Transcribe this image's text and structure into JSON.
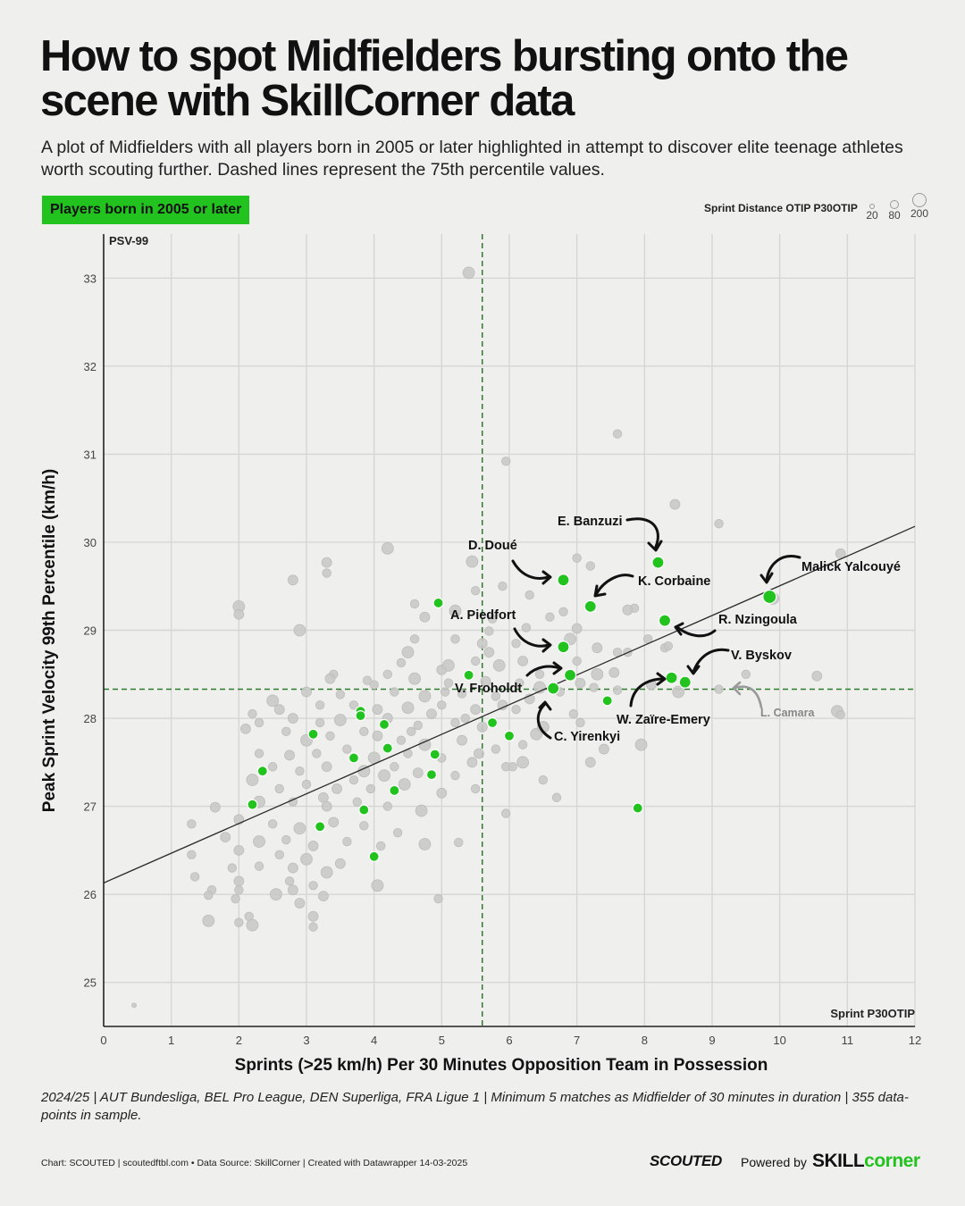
{
  "title": "How to spot Midfielders bursting onto the scene with SkillCorner data",
  "subtitle": "A plot of Midfielders with all players born in 2005 or later highlighted in attempt to discover elite teenage athletes worth scouting further. Dashed lines represent the 75th percentile values.",
  "badge": "Players born in 2005 or later",
  "size_legend": {
    "title": "Sprint Distance OTIP P30OTIP",
    "items": [
      {
        "label": "20"
      },
      {
        "label": "80"
      },
      {
        "label": "200"
      }
    ]
  },
  "footnote": "2024/25 | AUT Bundesliga, BEL Pro League, DEN Superliga, FRA Ligue 1 | Minimum 5 matches as Midfielder of 30 minutes in duration | 355 data-points in sample.",
  "credits": "Chart: SCOUTED | scoutedftbl.com • Data Source: SkillCorner | Created with Datawrapper 14-03-2025",
  "brand": {
    "scouted": "SCOUTED",
    "powered_by": "Powered by",
    "skill": "SKILL",
    "corner": "corner"
  },
  "colors": {
    "highlight": "#22c31f",
    "others": "#c9c9c7",
    "others_stroke": "#bdbdbb",
    "grid": "#d6d6d4",
    "ref": "#2f7a2f"
  },
  "chart_data": {
    "type": "scatter",
    "xlabel": "Sprints (>25 km/h) Per 30 Minutes Opposition Team in Possession",
    "ylabel": "Peak Sprint Velocity 99th Percentile (km/h)",
    "y_corner_label": "PSV-99",
    "x_corner_label": "Sprint P30OTIP",
    "xlim": [
      0,
      12
    ],
    "ylim": [
      24.5,
      33.5
    ],
    "xticks": [
      0,
      1,
      2,
      3,
      4,
      5,
      6,
      7,
      8,
      9,
      10,
      11,
      12
    ],
    "yticks": [
      25,
      26,
      27,
      28,
      29,
      30,
      31,
      32,
      33
    ],
    "x_p75": 5.6,
    "y_p75": 28.33,
    "trendline": [
      [
        0,
        26.13
      ],
      [
        12,
        30.18
      ]
    ],
    "highlighted": [
      {
        "name": "E. Banzuzi",
        "x": 8.2,
        "y": 29.77
      },
      {
        "name": "D. Doué",
        "x": 6.8,
        "y": 29.57
      },
      {
        "name": "K. Corbaine",
        "x": 7.2,
        "y": 29.27
      },
      {
        "name": "Malick Yalcouyé",
        "x": 9.85,
        "y": 29.38
      },
      {
        "name": "A. Piedfort",
        "x": 6.8,
        "y": 28.81
      },
      {
        "name": "R. Nzingoula",
        "x": 8.3,
        "y": 29.11
      },
      {
        "name": "V. Byskov",
        "x": 8.6,
        "y": 28.41
      },
      {
        "name": "W. Zaïre-Emery",
        "x": 8.4,
        "y": 28.46
      },
      {
        "name": "V. Froholdt",
        "x": 6.9,
        "y": 28.49
      },
      {
        "name": "C. Yirenkyi",
        "x": 6.65,
        "y": 28.34
      },
      {
        "name": "",
        "x": 4.95,
        "y": 29.31
      },
      {
        "name": "",
        "x": 5.4,
        "y": 28.49
      },
      {
        "name": "",
        "x": 7.45,
        "y": 28.2
      },
      {
        "name": "",
        "x": 5.75,
        "y": 27.95
      },
      {
        "name": "",
        "x": 6.0,
        "y": 27.8
      },
      {
        "name": "",
        "x": 7.9,
        "y": 26.98
      },
      {
        "name": "",
        "x": 3.1,
        "y": 27.82
      },
      {
        "name": "",
        "x": 3.8,
        "y": 28.08
      },
      {
        "name": "",
        "x": 3.8,
        "y": 28.03
      },
      {
        "name": "",
        "x": 4.15,
        "y": 27.93
      },
      {
        "name": "",
        "x": 3.7,
        "y": 27.55
      },
      {
        "name": "",
        "x": 4.2,
        "y": 27.66
      },
      {
        "name": "",
        "x": 4.9,
        "y": 27.59
      },
      {
        "name": "",
        "x": 4.85,
        "y": 27.36
      },
      {
        "name": "",
        "x": 2.35,
        "y": 27.4
      },
      {
        "name": "",
        "x": 4.3,
        "y": 27.18
      },
      {
        "name": "",
        "x": 2.2,
        "y": 27.02
      },
      {
        "name": "",
        "x": 3.85,
        "y": 26.96
      },
      {
        "name": "",
        "x": 3.2,
        "y": 26.77
      },
      {
        "name": "",
        "x": 4.0,
        "y": 26.43
      }
    ],
    "others": [
      {
        "x": 5.4,
        "y": 33.06
      },
      {
        "x": 7.6,
        "y": 31.23
      },
      {
        "x": 5.95,
        "y": 30.92
      },
      {
        "x": 8.45,
        "y": 30.43
      },
      {
        "x": 9.1,
        "y": 30.21
      },
      {
        "x": 4.2,
        "y": 29.93
      },
      {
        "x": 10.9,
        "y": 29.87
      },
      {
        "x": 7.0,
        "y": 29.82
      },
      {
        "x": 7.2,
        "y": 29.73
      },
      {
        "x": 3.3,
        "y": 29.77
      },
      {
        "x": 5.45,
        "y": 29.78
      },
      {
        "x": 3.3,
        "y": 29.65
      },
      {
        "x": 2.8,
        "y": 29.57
      },
      {
        "x": 5.9,
        "y": 29.5
      },
      {
        "x": 5.5,
        "y": 29.45
      },
      {
        "x": 9.9,
        "y": 29.36
      },
      {
        "x": 6.3,
        "y": 29.4
      },
      {
        "x": 7.85,
        "y": 29.25
      },
      {
        "x": 7.75,
        "y": 29.23
      },
      {
        "x": 6.8,
        "y": 29.21
      },
      {
        "x": 2.0,
        "y": 29.27
      },
      {
        "x": 2.0,
        "y": 29.18
      },
      {
        "x": 4.6,
        "y": 29.3
      },
      {
        "x": 6.6,
        "y": 29.15
      },
      {
        "x": 4.75,
        "y": 29.15
      },
      {
        "x": 5.2,
        "y": 29.22
      },
      {
        "x": 5.75,
        "y": 29.13
      },
      {
        "x": 7.0,
        "y": 29.02
      },
      {
        "x": 6.25,
        "y": 29.03
      },
      {
        "x": 5.7,
        "y": 28.99
      },
      {
        "x": 2.9,
        "y": 29.0
      },
      {
        "x": 4.6,
        "y": 28.9
      },
      {
        "x": 5.2,
        "y": 28.9
      },
      {
        "x": 5.6,
        "y": 28.85
      },
      {
        "x": 6.1,
        "y": 28.85
      },
      {
        "x": 6.9,
        "y": 28.9
      },
      {
        "x": 7.3,
        "y": 28.8
      },
      {
        "x": 8.05,
        "y": 28.9
      },
      {
        "x": 8.3,
        "y": 28.8
      },
      {
        "x": 5.7,
        "y": 28.75
      },
      {
        "x": 4.5,
        "y": 28.75
      },
      {
        "x": 7.0,
        "y": 28.65
      },
      {
        "x": 6.2,
        "y": 28.65
      },
      {
        "x": 7.6,
        "y": 28.75
      },
      {
        "x": 7.75,
        "y": 28.75
      },
      {
        "x": 5.85,
        "y": 28.6
      },
      {
        "x": 5.5,
        "y": 28.65
      },
      {
        "x": 4.4,
        "y": 28.63
      },
      {
        "x": 5.0,
        "y": 28.55
      },
      {
        "x": 6.45,
        "y": 28.5
      },
      {
        "x": 7.3,
        "y": 28.5
      },
      {
        "x": 7.55,
        "y": 28.52
      },
      {
        "x": 8.35,
        "y": 28.82
      },
      {
        "x": 9.5,
        "y": 28.5
      },
      {
        "x": 10.55,
        "y": 28.48
      },
      {
        "x": 5.1,
        "y": 28.6
      },
      {
        "x": 3.4,
        "y": 28.5
      },
      {
        "x": 3.35,
        "y": 28.45
      },
      {
        "x": 3.9,
        "y": 28.43
      },
      {
        "x": 4.2,
        "y": 28.5
      },
      {
        "x": 4.6,
        "y": 28.45
      },
      {
        "x": 4.0,
        "y": 28.38
      },
      {
        "x": 5.05,
        "y": 28.3
      },
      {
        "x": 5.65,
        "y": 28.42
      },
      {
        "x": 6.15,
        "y": 28.4
      },
      {
        "x": 6.45,
        "y": 28.35
      },
      {
        "x": 7.05,
        "y": 28.4
      },
      {
        "x": 7.25,
        "y": 28.35
      },
      {
        "x": 7.6,
        "y": 28.32
      },
      {
        "x": 8.1,
        "y": 28.38
      },
      {
        "x": 8.5,
        "y": 28.3
      },
      {
        "x": 9.1,
        "y": 28.33
      },
      {
        "x": 3.0,
        "y": 28.3
      },
      {
        "x": 3.5,
        "y": 28.27
      },
      {
        "x": 4.3,
        "y": 28.3
      },
      {
        "x": 4.75,
        "y": 28.25
      },
      {
        "x": 5.3,
        "y": 28.28
      },
      {
        "x": 5.8,
        "y": 28.25
      },
      {
        "x": 6.3,
        "y": 28.22
      },
      {
        "x": 6.75,
        "y": 28.3
      },
      {
        "x": 2.5,
        "y": 28.2
      },
      {
        "x": 2.6,
        "y": 28.1
      },
      {
        "x": 3.2,
        "y": 28.15
      },
      {
        "x": 3.7,
        "y": 28.15
      },
      {
        "x": 4.05,
        "y": 28.1
      },
      {
        "x": 4.5,
        "y": 28.12
      },
      {
        "x": 5.0,
        "y": 28.15
      },
      {
        "x": 5.5,
        "y": 28.1
      },
      {
        "x": 6.1,
        "y": 28.1
      },
      {
        "x": 6.95,
        "y": 28.05
      },
      {
        "x": 10.85,
        "y": 28.08
      },
      {
        "x": 10.9,
        "y": 28.04
      },
      {
        "x": 2.2,
        "y": 28.05
      },
      {
        "x": 2.8,
        "y": 28.0
      },
      {
        "x": 3.2,
        "y": 27.95
      },
      {
        "x": 3.5,
        "y": 27.98
      },
      {
        "x": 4.2,
        "y": 28.0
      },
      {
        "x": 4.65,
        "y": 27.92
      },
      {
        "x": 5.2,
        "y": 27.95
      },
      {
        "x": 5.6,
        "y": 27.9
      },
      {
        "x": 6.4,
        "y": 27.82
      },
      {
        "x": 7.05,
        "y": 27.95
      },
      {
        "x": 2.1,
        "y": 27.88
      },
      {
        "x": 2.3,
        "y": 27.95
      },
      {
        "x": 2.7,
        "y": 27.85
      },
      {
        "x": 3.0,
        "y": 27.75
      },
      {
        "x": 3.35,
        "y": 27.8
      },
      {
        "x": 3.85,
        "y": 27.85
      },
      {
        "x": 4.05,
        "y": 27.8
      },
      {
        "x": 4.4,
        "y": 27.75
      },
      {
        "x": 4.75,
        "y": 27.7
      },
      {
        "x": 5.3,
        "y": 27.75
      },
      {
        "x": 5.8,
        "y": 27.65
      },
      {
        "x": 6.2,
        "y": 27.7
      },
      {
        "x": 7.4,
        "y": 27.65
      },
      {
        "x": 7.95,
        "y": 27.7
      },
      {
        "x": 2.3,
        "y": 27.6
      },
      {
        "x": 2.75,
        "y": 27.58
      },
      {
        "x": 3.15,
        "y": 27.6
      },
      {
        "x": 3.6,
        "y": 27.65
      },
      {
        "x": 4.0,
        "y": 27.55
      },
      {
        "x": 4.5,
        "y": 27.6
      },
      {
        "x": 5.0,
        "y": 27.55
      },
      {
        "x": 5.45,
        "y": 27.5
      },
      {
        "x": 5.95,
        "y": 27.45
      },
      {
        "x": 6.2,
        "y": 27.5
      },
      {
        "x": 7.2,
        "y": 27.5
      },
      {
        "x": 2.5,
        "y": 27.45
      },
      {
        "x": 2.9,
        "y": 27.4
      },
      {
        "x": 3.3,
        "y": 27.45
      },
      {
        "x": 3.85,
        "y": 27.4
      },
      {
        "x": 4.3,
        "y": 27.45
      },
      {
        "x": 4.65,
        "y": 27.38
      },
      {
        "x": 5.2,
        "y": 27.35
      },
      {
        "x": 6.5,
        "y": 27.3
      },
      {
        "x": 2.2,
        "y": 27.3
      },
      {
        "x": 2.6,
        "y": 27.2
      },
      {
        "x": 3.0,
        "y": 27.25
      },
      {
        "x": 3.45,
        "y": 27.2
      },
      {
        "x": 3.95,
        "y": 27.2
      },
      {
        "x": 4.45,
        "y": 27.25
      },
      {
        "x": 5.0,
        "y": 27.15
      },
      {
        "x": 5.5,
        "y": 27.2
      },
      {
        "x": 6.7,
        "y": 27.1
      },
      {
        "x": 1.65,
        "y": 26.99
      },
      {
        "x": 2.3,
        "y": 27.05
      },
      {
        "x": 2.8,
        "y": 27.05
      },
      {
        "x": 3.3,
        "y": 27.0
      },
      {
        "x": 3.75,
        "y": 27.05
      },
      {
        "x": 4.2,
        "y": 27.0
      },
      {
        "x": 4.7,
        "y": 26.95
      },
      {
        "x": 5.95,
        "y": 26.92
      },
      {
        "x": 1.3,
        "y": 26.8
      },
      {
        "x": 2.0,
        "y": 26.85
      },
      {
        "x": 2.5,
        "y": 26.8
      },
      {
        "x": 2.9,
        "y": 26.75
      },
      {
        "x": 3.4,
        "y": 26.82
      },
      {
        "x": 3.85,
        "y": 26.78
      },
      {
        "x": 4.35,
        "y": 26.7
      },
      {
        "x": 1.8,
        "y": 26.65
      },
      {
        "x": 2.3,
        "y": 26.6
      },
      {
        "x": 2.7,
        "y": 26.62
      },
      {
        "x": 3.1,
        "y": 26.55
      },
      {
        "x": 3.6,
        "y": 26.6
      },
      {
        "x": 4.1,
        "y": 26.55
      },
      {
        "x": 4.75,
        "y": 26.57
      },
      {
        "x": 5.25,
        "y": 26.59
      },
      {
        "x": 1.3,
        "y": 26.45
      },
      {
        "x": 2.0,
        "y": 26.5
      },
      {
        "x": 2.6,
        "y": 26.45
      },
      {
        "x": 3.0,
        "y": 26.4
      },
      {
        "x": 3.5,
        "y": 26.35
      },
      {
        "x": 1.9,
        "y": 26.3
      },
      {
        "x": 2.3,
        "y": 26.32
      },
      {
        "x": 2.8,
        "y": 26.3
      },
      {
        "x": 3.3,
        "y": 26.25
      },
      {
        "x": 1.35,
        "y": 26.2
      },
      {
        "x": 2.0,
        "y": 26.15
      },
      {
        "x": 2.75,
        "y": 26.15
      },
      {
        "x": 3.1,
        "y": 26.1
      },
      {
        "x": 4.05,
        "y": 26.1
      },
      {
        "x": 1.6,
        "y": 26.05
      },
      {
        "x": 2.0,
        "y": 26.05
      },
      {
        "x": 2.8,
        "y": 26.05
      },
      {
        "x": 1.55,
        "y": 25.99
      },
      {
        "x": 2.55,
        "y": 26.0
      },
      {
        "x": 3.25,
        "y": 25.98
      },
      {
        "x": 4.95,
        "y": 25.95
      },
      {
        "x": 1.95,
        "y": 25.95
      },
      {
        "x": 2.9,
        "y": 25.9
      },
      {
        "x": 1.55,
        "y": 25.7
      },
      {
        "x": 2.15,
        "y": 25.75
      },
      {
        "x": 3.1,
        "y": 25.75
      },
      {
        "x": 3.1,
        "y": 25.63
      },
      {
        "x": 2.0,
        "y": 25.68
      },
      {
        "x": 2.2,
        "y": 25.65
      },
      {
        "x": 0.45,
        "y": 24.74
      },
      {
        "x": 5.35,
        "y": 28.0
      },
      {
        "x": 5.55,
        "y": 27.6
      },
      {
        "x": 6.05,
        "y": 27.45
      },
      {
        "x": 6.5,
        "y": 27.9
      },
      {
        "x": 4.85,
        "y": 28.05
      },
      {
        "x": 4.55,
        "y": 27.85
      },
      {
        "x": 3.7,
        "y": 27.3
      },
      {
        "x": 3.25,
        "y": 27.1
      },
      {
        "x": 4.15,
        "y": 27.35
      },
      {
        "x": 5.1,
        "y": 28.4
      },
      {
        "x": 5.9,
        "y": 28.15
      }
    ]
  }
}
